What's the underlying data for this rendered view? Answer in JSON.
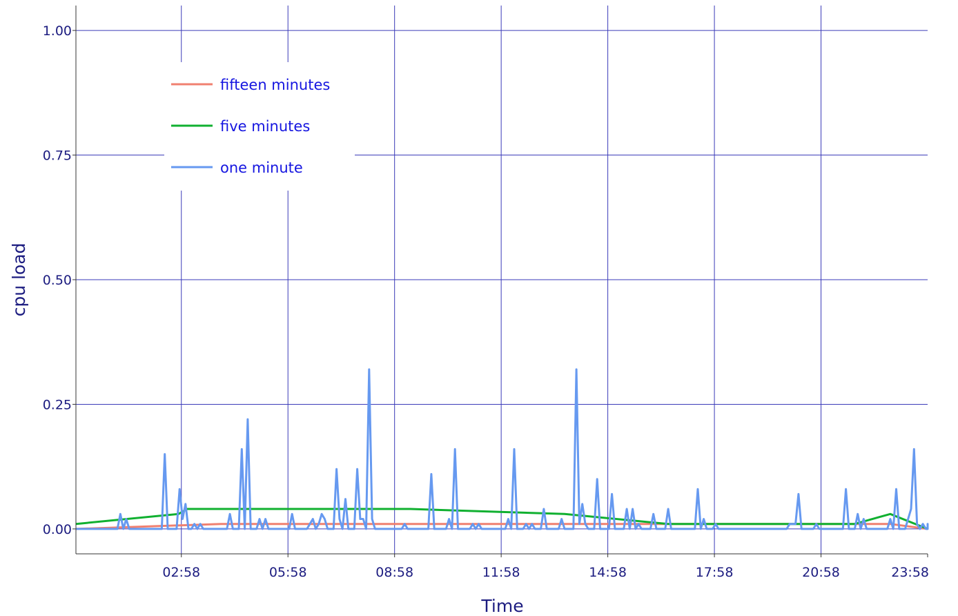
{
  "chart_data": {
    "type": "line",
    "xlabel": "Time",
    "ylabel": "cpu load",
    "x_unit": "time of day",
    "xlim": [
      "00:00",
      "23:58"
    ],
    "ylim": [
      -0.05,
      1.05
    ],
    "x_ticks": [
      "02:58",
      "05:58",
      "08:58",
      "11:58",
      "14:58",
      "17:58",
      "20:58",
      "23:58"
    ],
    "y_ticks": [
      "0.00",
      "0.25",
      "0.50",
      "0.75",
      "1.00"
    ],
    "grid": true,
    "legend_position": "top-left",
    "series": [
      {
        "name": "fifteen minutes",
        "color": "#f08070",
        "points": [
          [
            "00:00",
            0
          ],
          [
            "04:05",
            0.01
          ],
          [
            "22:55",
            0.01
          ],
          [
            "23:58",
            0
          ]
        ]
      },
      {
        "name": "five minutes",
        "color": "#10b030",
        "points": [
          [
            "00:00",
            0.01
          ],
          [
            "02:53",
            0.03
          ],
          [
            "03:08",
            0.04
          ],
          [
            "04:05",
            0.04
          ],
          [
            "07:05",
            0.04
          ],
          [
            "07:55",
            0.04
          ],
          [
            "09:25",
            0.04
          ],
          [
            "13:45",
            0.03
          ],
          [
            "16:40",
            0.01
          ],
          [
            "21:55",
            0.01
          ],
          [
            "22:55",
            0.03
          ],
          [
            "23:58",
            0
          ]
        ]
      },
      {
        "name": "one minute",
        "color": "#6699f0",
        "points": [
          [
            "00:00",
            0
          ],
          [
            "01:10",
            0
          ],
          [
            "01:15",
            0.03
          ],
          [
            "01:20",
            0
          ],
          [
            "01:25",
            0.02
          ],
          [
            "01:30",
            0
          ],
          [
            "02:25",
            0
          ],
          [
            "02:30",
            0.15
          ],
          [
            "02:35",
            0
          ],
          [
            "02:50",
            0
          ],
          [
            "02:55",
            0.08
          ],
          [
            "03:00",
            0.02
          ],
          [
            "03:05",
            0.05
          ],
          [
            "03:10",
            0
          ],
          [
            "03:15",
            0
          ],
          [
            "03:20",
            0.01
          ],
          [
            "03:25",
            0
          ],
          [
            "03:30",
            0.01
          ],
          [
            "03:35",
            0
          ],
          [
            "04:15",
            0
          ],
          [
            "04:20",
            0.03
          ],
          [
            "04:25",
            0
          ],
          [
            "04:35",
            0
          ],
          [
            "04:40",
            0.16
          ],
          [
            "04:45",
            0
          ],
          [
            "04:50",
            0.22
          ],
          [
            "04:55",
            0
          ],
          [
            "05:05",
            0
          ],
          [
            "05:10",
            0.02
          ],
          [
            "05:15",
            0
          ],
          [
            "05:20",
            0.02
          ],
          [
            "05:25",
            0
          ],
          [
            "06:00",
            0
          ],
          [
            "06:05",
            0.03
          ],
          [
            "06:10",
            0
          ],
          [
            "06:30",
            0
          ],
          [
            "06:35",
            0.01
          ],
          [
            "06:40",
            0.02
          ],
          [
            "06:45",
            0
          ],
          [
            "06:50",
            0.01
          ],
          [
            "06:55",
            0.03
          ],
          [
            "07:00",
            0.02
          ],
          [
            "07:05",
            0
          ],
          [
            "07:15",
            0
          ],
          [
            "07:20",
            0.12
          ],
          [
            "07:25",
            0.02
          ],
          [
            "07:30",
            0
          ],
          [
            "07:35",
            0.06
          ],
          [
            "07:40",
            0
          ],
          [
            "07:50",
            0
          ],
          [
            "07:55",
            0.12
          ],
          [
            "08:00",
            0.02
          ],
          [
            "08:05",
            0.02
          ],
          [
            "08:10",
            0
          ],
          [
            "08:15",
            0.32
          ],
          [
            "08:20",
            0.02
          ],
          [
            "08:25",
            0
          ],
          [
            "09:10",
            0
          ],
          [
            "09:15",
            0.01
          ],
          [
            "09:20",
            0
          ],
          [
            "09:55",
            0
          ],
          [
            "10:00",
            0.11
          ],
          [
            "10:05",
            0
          ],
          [
            "10:25",
            0
          ],
          [
            "10:30",
            0.02
          ],
          [
            "10:35",
            0
          ],
          [
            "10:40",
            0.16
          ],
          [
            "10:45",
            0
          ],
          [
            "11:05",
            0
          ],
          [
            "11:10",
            0.01
          ],
          [
            "11:15",
            0
          ],
          [
            "11:20",
            0.01
          ],
          [
            "11:25",
            0
          ],
          [
            "12:05",
            0
          ],
          [
            "12:10",
            0.02
          ],
          [
            "12:15",
            0
          ],
          [
            "12:20",
            0.16
          ],
          [
            "12:25",
            0
          ],
          [
            "12:35",
            0
          ],
          [
            "12:40",
            0.01
          ],
          [
            "12:45",
            0
          ],
          [
            "12:50",
            0.01
          ],
          [
            "12:55",
            0
          ],
          [
            "13:05",
            0
          ],
          [
            "13:10",
            0.04
          ],
          [
            "13:15",
            0
          ],
          [
            "13:35",
            0
          ],
          [
            "13:40",
            0.02
          ],
          [
            "13:45",
            0
          ],
          [
            "14:00",
            0
          ],
          [
            "14:05",
            0.32
          ],
          [
            "14:10",
            0.01
          ],
          [
            "14:15",
            0.05
          ],
          [
            "14:20",
            0.01
          ],
          [
            "14:25",
            0
          ],
          [
            "14:35",
            0
          ],
          [
            "14:40",
            0.1
          ],
          [
            "14:45",
            0
          ],
          [
            "15:00",
            0
          ],
          [
            "15:05",
            0.07
          ],
          [
            "15:10",
            0
          ],
          [
            "15:25",
            0
          ],
          [
            "15:30",
            0.04
          ],
          [
            "15:35",
            0
          ],
          [
            "15:40",
            0.04
          ],
          [
            "15:45",
            0
          ],
          [
            "15:50",
            0.01
          ],
          [
            "15:55",
            0
          ],
          [
            "16:10",
            0
          ],
          [
            "16:15",
            0.03
          ],
          [
            "16:20",
            0
          ],
          [
            "16:35",
            0
          ],
          [
            "16:40",
            0.04
          ],
          [
            "16:45",
            0
          ],
          [
            "17:25",
            0
          ],
          [
            "17:30",
            0.08
          ],
          [
            "17:35",
            0
          ],
          [
            "17:40",
            0.02
          ],
          [
            "17:45",
            0
          ],
          [
            "17:55",
            0
          ],
          [
            "18:00",
            0.01
          ],
          [
            "18:05",
            0
          ],
          [
            "20:00",
            0
          ],
          [
            "20:05",
            0.01
          ],
          [
            "20:10",
            0.01
          ],
          [
            "20:15",
            0.01
          ],
          [
            "20:20",
            0.07
          ],
          [
            "20:25",
            0
          ],
          [
            "20:45",
            0
          ],
          [
            "20:50",
            0.01
          ],
          [
            "20:55",
            0
          ],
          [
            "21:35",
            0
          ],
          [
            "21:40",
            0.08
          ],
          [
            "21:45",
            0
          ],
          [
            "21:55",
            0
          ],
          [
            "22:00",
            0.03
          ],
          [
            "22:05",
            0
          ],
          [
            "22:10",
            0.02
          ],
          [
            "22:15",
            0
          ],
          [
            "22:50",
            0
          ],
          [
            "22:55",
            0.02
          ],
          [
            "23:00",
            0
          ],
          [
            "23:05",
            0.08
          ],
          [
            "23:10",
            0
          ],
          [
            "23:20",
            0
          ],
          [
            "23:25",
            0.02
          ],
          [
            "23:30",
            0.04
          ],
          [
            "23:35",
            0.16
          ],
          [
            "23:40",
            0.01
          ],
          [
            "23:45",
            0
          ],
          [
            "23:50",
            0.01
          ],
          [
            "23:55",
            0
          ],
          [
            "00:00",
            0
          ],
          [
            "00:05",
            0.01
          ],
          [
            "00:10",
            0
          ],
          [
            "00:15",
            0.01
          ],
          [
            "00:20",
            0
          ]
        ]
      }
    ]
  }
}
